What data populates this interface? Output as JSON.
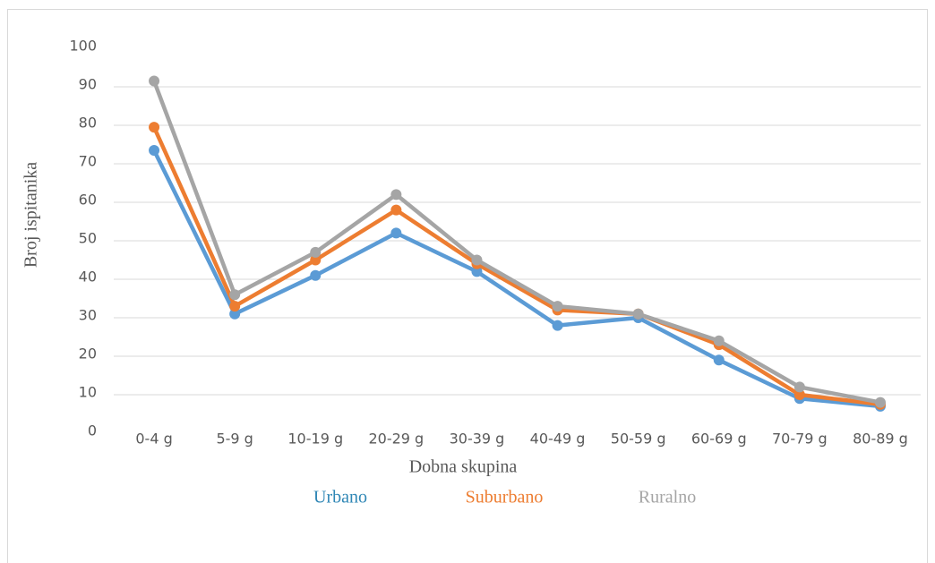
{
  "chart_data": {
    "type": "line",
    "x_label": "Dobna skupina",
    "y_label": "Broj ispitanika",
    "categories": [
      "0-4 g",
      "5-9 g",
      "10-19 g",
      "20-29 g",
      "30-39 g",
      "40-49 g",
      "50-59 g",
      "60-69 g",
      "70-79 g",
      "80-89 g"
    ],
    "series": [
      {
        "name": "Urbano",
        "color": "#5b9bd5",
        "values": [
          73.5,
          31,
          41,
          52,
          42,
          28,
          30,
          19,
          9,
          7
        ]
      },
      {
        "name": "Suburbano",
        "color": "#ed7d31",
        "values": [
          79.5,
          33,
          45,
          58,
          44,
          32,
          31,
          23,
          10,
          7.5
        ]
      },
      {
        "name": "Ruralno",
        "color": "#a5a5a5",
        "values": [
          91.5,
          36,
          47,
          62,
          45,
          33,
          31,
          24,
          12,
          8
        ]
      }
    ],
    "ylim": [
      0,
      100
    ],
    "yticks": [
      0,
      10,
      20,
      30,
      40,
      50,
      60,
      70,
      80,
      90,
      100
    ],
    "grid": true,
    "legend": "bottom"
  }
}
